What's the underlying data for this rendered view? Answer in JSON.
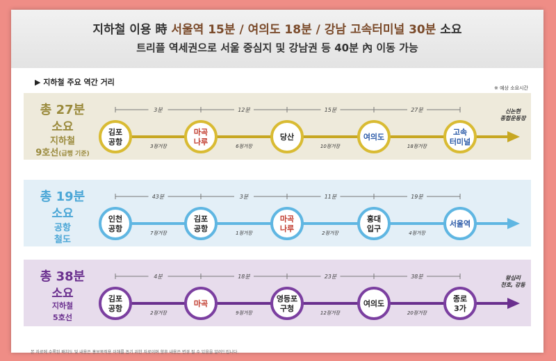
{
  "header": {
    "line1_a": "지하철 이용 時 ",
    "line1_b": "서울역 15분 / 여의도 18분 / 강남 고속터미널 30분",
    "line1_c": " 소요",
    "line2": "트리플 역세권으로 서울 중심지 및 강남권 등 40분 內 이동 가능"
  },
  "subtitle": "▶ 지하철 주요 역간 거리",
  "note": "※ 예상 소요시간",
  "colors": {
    "line9": "#c7a722",
    "line9_ring": "#d9bb33",
    "airport": "#5fb6e2",
    "line5": "#6a2f8e",
    "line5_ring": "#7b3fa0"
  },
  "lines": [
    {
      "id": "line9",
      "label": {
        "t1": "총 27분",
        "t2": "소요",
        "t3": "지하철",
        "t4": "9호선",
        "t4_small": "(급행 기준)"
      },
      "times": [
        "3분",
        "12분",
        "15분",
        "27분"
      ],
      "segments": [
        "3정거장",
        "6정거장",
        "10정거장",
        "18정거장"
      ],
      "stations": [
        {
          "l1": "김포",
          "l2": "공항",
          "color": "#222222"
        },
        {
          "l1": "마곡",
          "l2": "나루",
          "color": "#c0392b"
        },
        {
          "l1": "당산",
          "l2": "",
          "color": "#222222"
        },
        {
          "l1": "여의도",
          "l2": "",
          "color": "#2b5aa8"
        },
        {
          "l1": "고속",
          "l2": "터미널",
          "color": "#2b5aa8"
        }
      ],
      "end": {
        "l1": "신논현",
        "l2": "종합운동장"
      }
    },
    {
      "id": "airport",
      "label": {
        "t1": "총 19분",
        "t2": "소요",
        "t3": "공항",
        "t4": "철도",
        "t4_small": ""
      },
      "times": [
        "43분",
        "3분",
        "11분",
        "19분"
      ],
      "segments": [
        "7정거장",
        "1정거장",
        "2정거장",
        "4정거장"
      ],
      "stations": [
        {
          "l1": "인천",
          "l2": "공항",
          "color": "#222222"
        },
        {
          "l1": "김포",
          "l2": "공항",
          "color": "#222222"
        },
        {
          "l1": "마곡",
          "l2": "나루",
          "color": "#c0392b"
        },
        {
          "l1": "홍대",
          "l2": "입구",
          "color": "#222222"
        },
        {
          "l1": "서울역",
          "l2": "",
          "color": "#2b5aa8"
        }
      ],
      "end": {
        "l1": "",
        "l2": ""
      }
    },
    {
      "id": "line5",
      "label": {
        "t1": "총 38분",
        "t2": "소요",
        "t3": "지하철",
        "t4": "5호선",
        "t4_small": ""
      },
      "times": [
        "4분",
        "18분",
        "23분",
        "38분"
      ],
      "segments": [
        "2정거장",
        "9정거장",
        "12정거장",
        "20정거장"
      ],
      "stations": [
        {
          "l1": "김포",
          "l2": "공항",
          "color": "#222222"
        },
        {
          "l1": "마곡",
          "l2": "",
          "color": "#c0392b"
        },
        {
          "l1": "영등포",
          "l2": "구청",
          "color": "#222222"
        },
        {
          "l1": "여의도",
          "l2": "",
          "color": "#222222"
        },
        {
          "l1": "종로",
          "l2": "3가",
          "color": "#222222"
        }
      ],
      "end": {
        "l1": "왕십리",
        "l2": "천호, 강동"
      }
    }
  ],
  "footer": "본 자료에 수록된 배치도 및 내용은 홍보목적용 이해를 돕기 위한 자료이며 향후 내용은 변경 될 수 있음을 알려드립니다."
}
